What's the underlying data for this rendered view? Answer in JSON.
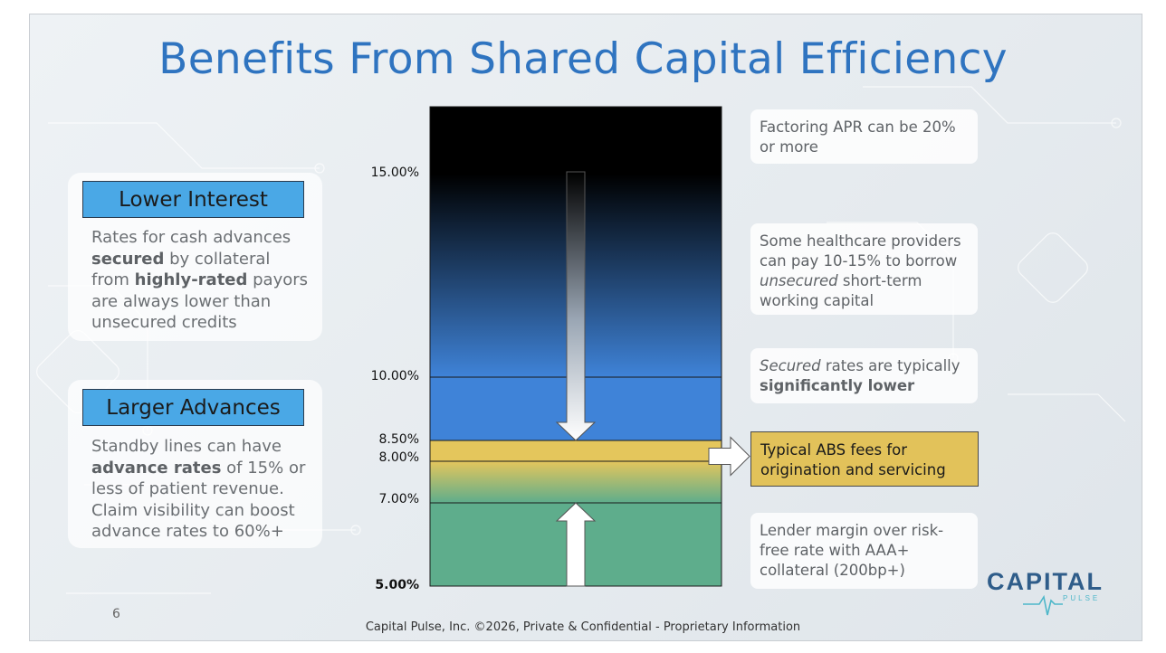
{
  "title": "Benefits From Shared Capital Efficiency",
  "cards": [
    {
      "heading": "Lower Interest",
      "body": [
        {
          "t": "Rates for cash advances "
        },
        {
          "t": "secured",
          "b": true
        },
        {
          "t": " by collateral from "
        },
        {
          "t": "highly-rated",
          "b": true
        },
        {
          "t": " payors are always lower than unsecured credits"
        }
      ]
    },
    {
      "heading": "Larger Advances",
      "body": [
        {
          "t": "Standby lines can have "
        },
        {
          "t": "advance rates",
          "b": true
        },
        {
          "t": " of 15% or less of patient revenue. Claim visibility can boost advance rates to 60%+"
        }
      ]
    }
  ],
  "notes": [
    {
      "parts": [
        {
          "t": "Factoring APR can be 20% or more"
        }
      ]
    },
    {
      "parts": [
        {
          "t": "Some healthcare providers can pay 10-15% to borrow "
        },
        {
          "t": "unsecured",
          "i": true
        },
        {
          "t": " short-term working capital"
        }
      ]
    },
    {
      "parts": [
        {
          "t": "Secured",
          "i": true
        },
        {
          "t": " rates are typically "
        },
        {
          "t": "significantly lower",
          "b": true
        }
      ]
    },
    {
      "parts": [
        {
          "t": "Typical ABS fees for origination and  servicing"
        }
      ]
    },
    {
      "parts": [
        {
          "t": "Lender margin over risk-free rate with AAA+ collateral (200bp+)"
        }
      ]
    }
  ],
  "chart_data": {
    "type": "bar",
    "orientation": "stacked-vertical",
    "yticks": [
      {
        "label": "15.00%",
        "value": 15.0
      },
      {
        "label": "10.00%",
        "value": 10.0
      },
      {
        "label": "8.50%",
        "value": 8.5
      },
      {
        "label": "8.00%",
        "value": 8.0
      },
      {
        "label": "7.00%",
        "value": 7.0
      },
      {
        "label": "5.00%",
        "value": 5.0,
        "bold": true
      }
    ],
    "segments": [
      {
        "from": 5.0,
        "to": 7.0,
        "color": "#5ead8c"
      },
      {
        "from": 7.0,
        "to": 8.0,
        "color_top": "#e4c65c",
        "color_bottom": "#5ead8c"
      },
      {
        "from": 8.0,
        "to": 8.5,
        "color": "#e4c65c"
      },
      {
        "from": 8.5,
        "to": 10.0,
        "color": "#3f83d8"
      },
      {
        "from": 10.0,
        "to": 16.6,
        "color_top": "#000000",
        "color_bottom": "#3f83d8"
      }
    ],
    "arrows": [
      "down: from 15% to 8.5%",
      "up: from 5% to 7%",
      "right: ABS fee band to note"
    ]
  },
  "footer": "Capital Pulse, Inc. ©2026, Private & Confidential - Proprietary Information",
  "page_number": "6",
  "logo": {
    "main": "CAPITAL",
    "sub": "PULSE"
  },
  "colors": {
    "title": "#2f74c0",
    "heading_box": "#4aa8e6",
    "abs_box": "#e2c25a"
  }
}
